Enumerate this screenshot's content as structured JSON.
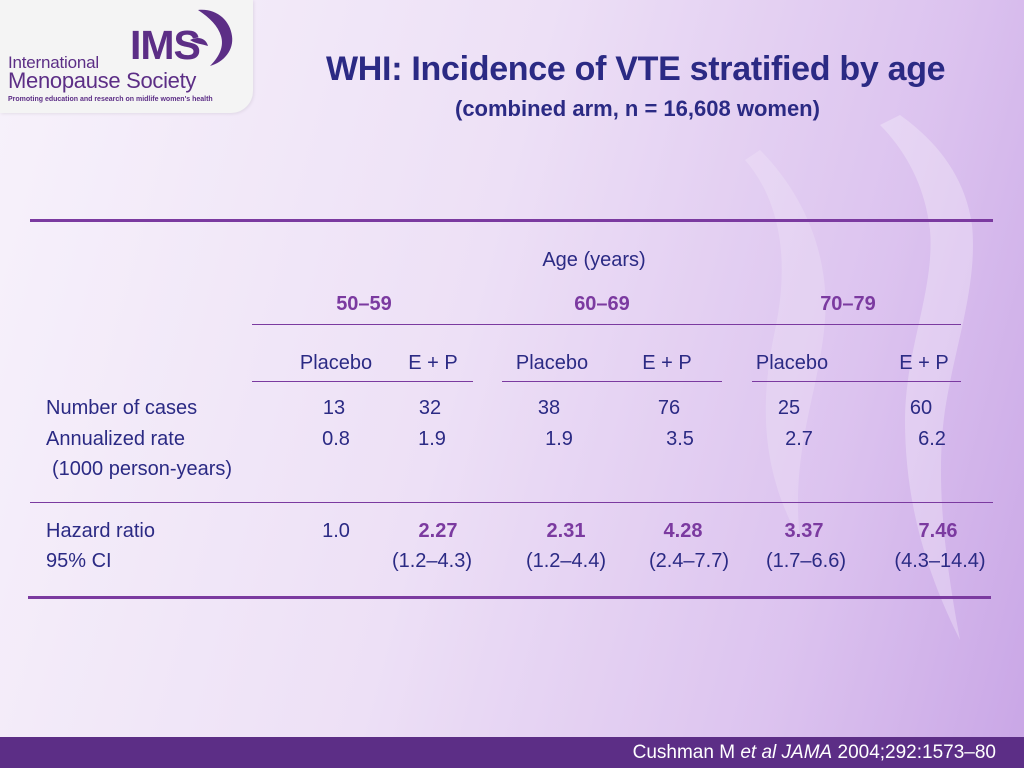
{
  "logo": {
    "ims": "IMS",
    "line1": "International",
    "line2": "Menopause Society",
    "tagline": "Promoting education and research on midlife women's health"
  },
  "title": "WHI: Incidence of VTE stratified by age",
  "subtitle": "(combined arm, n = 16,608 women)",
  "table": {
    "span_header": "Age (years)",
    "groups": [
      "50–59",
      "60–69",
      "70–79"
    ],
    "arms": [
      "Placebo",
      "E + P",
      "Placebo",
      "E + P",
      "Placebo",
      "E + P"
    ],
    "rows": [
      {
        "label": "Number of cases",
        "values": [
          "13",
          "32",
          "38",
          "76",
          "25",
          "60"
        ]
      },
      {
        "label": "Annualized rate",
        "values": [
          "0.8",
          "1.9",
          "1.9",
          "3.5",
          "2.7",
          "6.2"
        ]
      },
      {
        "label": "(1000 person-years)",
        "values": []
      },
      {
        "label": "Hazard ratio",
        "values": [
          "1.0",
          "2.27",
          "2.31",
          "4.28",
          "3.37",
          "7.46"
        ]
      },
      {
        "label": "95% CI",
        "values": [
          "",
          "(1.2–4.3)",
          "(1.2–4.4)",
          "(2.4–7.7)",
          "(1.7–6.6)",
          "(4.3–14.4)"
        ]
      }
    ]
  },
  "citation": {
    "author": "Cushman M ",
    "etal": "et al",
    "journal": "JAMA",
    "details": " 2004;292:1573–80"
  },
  "colors": {
    "title": "#2b2a84",
    "accent": "#7b3aa0",
    "footer": "#5c2e86"
  }
}
